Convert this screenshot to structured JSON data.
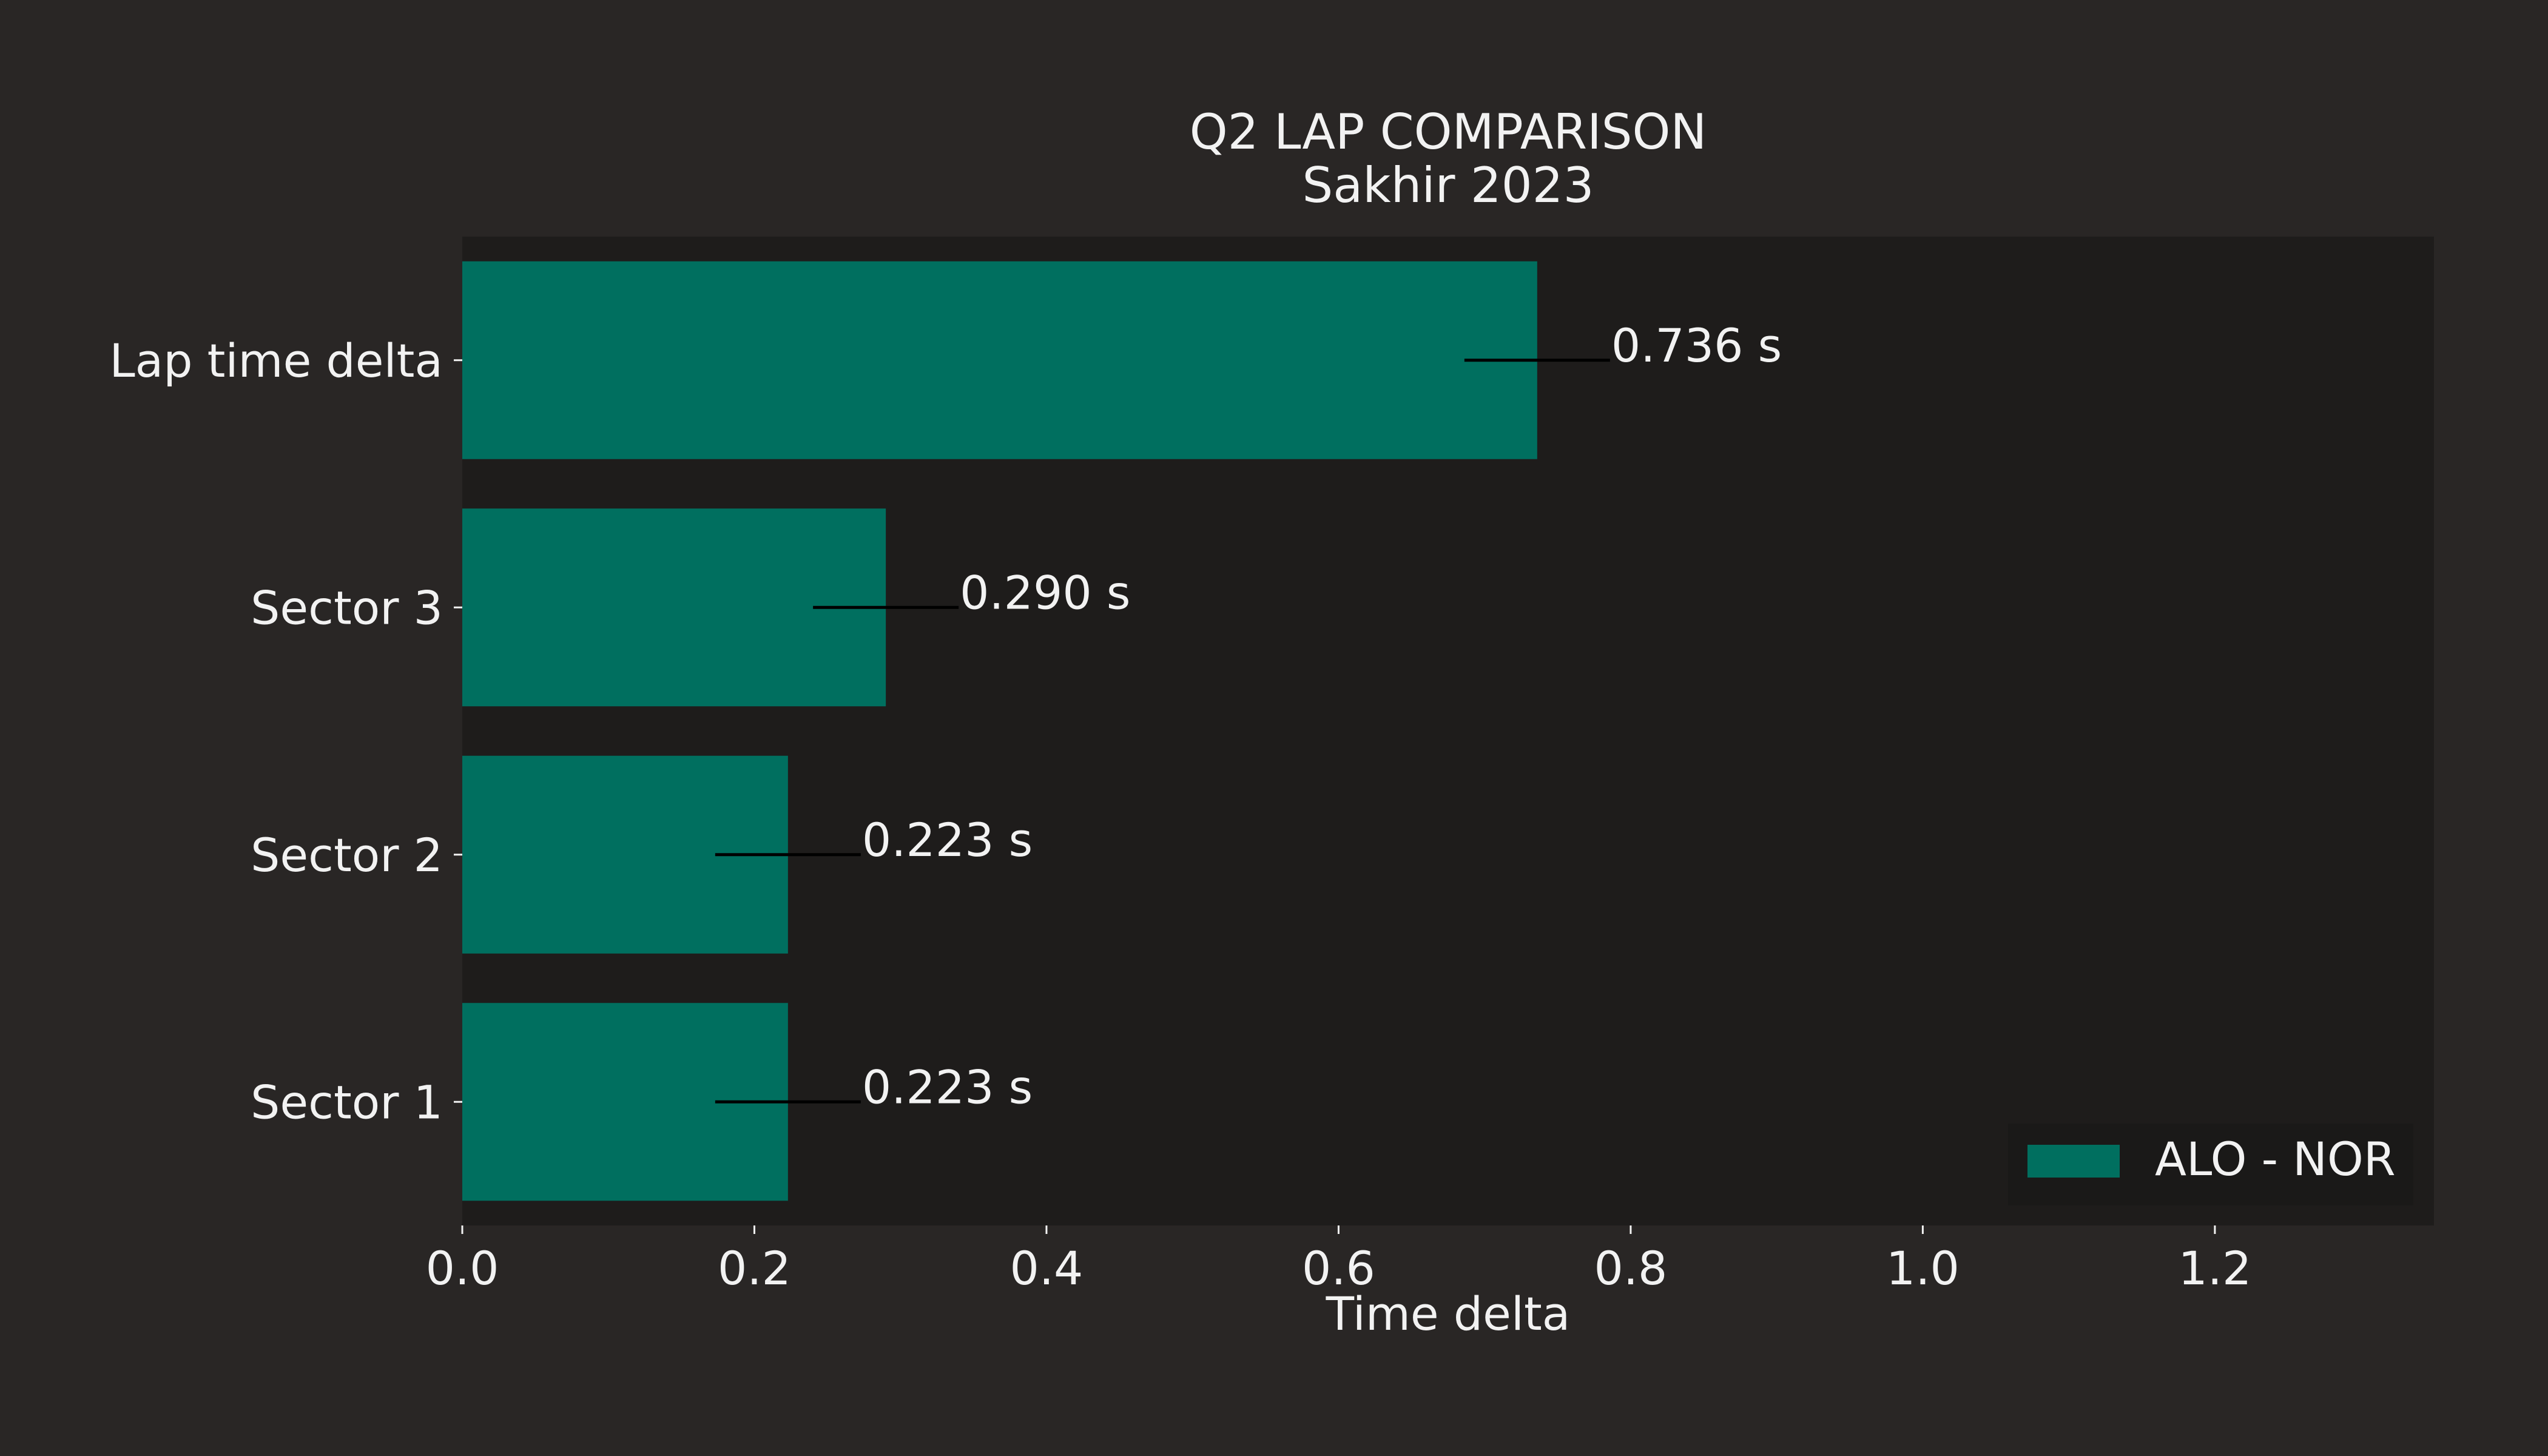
{
  "chart_data": {
    "type": "bar",
    "orientation": "horizontal",
    "title": "Q2 LAP COMPARISON",
    "subtitle": "Sakhir 2023",
    "xlabel": "Time delta",
    "ylabel": "",
    "categories": [
      "Sector 1",
      "Sector 2",
      "Sector 3",
      "Lap time delta"
    ],
    "series": [
      {
        "name": "ALO - NOR",
        "values": [
          0.223,
          0.223,
          0.29,
          0.736
        ]
      }
    ],
    "data_labels": [
      "0.223 s",
      "0.223 s",
      "0.290 s",
      "0.736 s"
    ],
    "xlim": [
      0,
      1.35
    ],
    "xticks": [
      0.0,
      0.2,
      0.4,
      0.6,
      0.8,
      1.0,
      1.2
    ],
    "xtick_labels": [
      "0.0",
      "0.2",
      "0.4",
      "0.6",
      "0.8",
      "1.0",
      "1.2"
    ],
    "grid": false,
    "legend_position": "bottom-right",
    "colors": {
      "background": "#292625",
      "plot_background": "#1e1c1b",
      "legend_background": "#1a1918",
      "bar": "#006f5f",
      "text": "#f2f2f2"
    }
  }
}
